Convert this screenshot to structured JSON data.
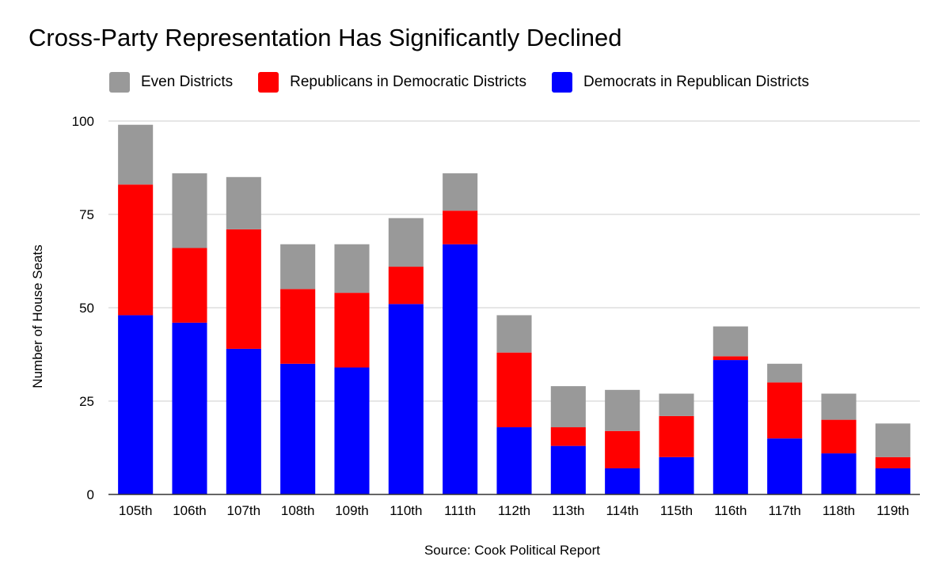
{
  "chart_data": {
    "type": "bar",
    "stacked": true,
    "title": "Cross-Party Representation Has Significantly Declined",
    "xlabel": "Source: Cook Political Report",
    "ylabel": "Number of House Seats",
    "ylim": [
      0,
      100
    ],
    "yticks": [
      0,
      25,
      50,
      75,
      100
    ],
    "grid": true,
    "legend_position": "top",
    "categories": [
      "105th",
      "106th",
      "107th",
      "108th",
      "109th",
      "110th",
      "111th",
      "112th",
      "113th",
      "114th",
      "115th",
      "116th",
      "117th",
      "118th",
      "119th"
    ],
    "series": [
      {
        "name": "Democrats in Republican Districts",
        "color": "#0000ff",
        "values": [
          48,
          46,
          39,
          35,
          34,
          51,
          67,
          18,
          13,
          7,
          10,
          36,
          15,
          11,
          7
        ]
      },
      {
        "name": "Republicans in Democratic Districts",
        "color": "#ff0000",
        "values": [
          35,
          20,
          32,
          20,
          20,
          10,
          9,
          20,
          5,
          10,
          11,
          1,
          15,
          9,
          3
        ]
      },
      {
        "name": "Even Districts",
        "color": "#999999",
        "values": [
          16,
          20,
          14,
          12,
          13,
          13,
          10,
          10,
          11,
          11,
          6,
          8,
          5,
          7,
          9
        ]
      }
    ],
    "legend_order": [
      2,
      1,
      0
    ]
  }
}
